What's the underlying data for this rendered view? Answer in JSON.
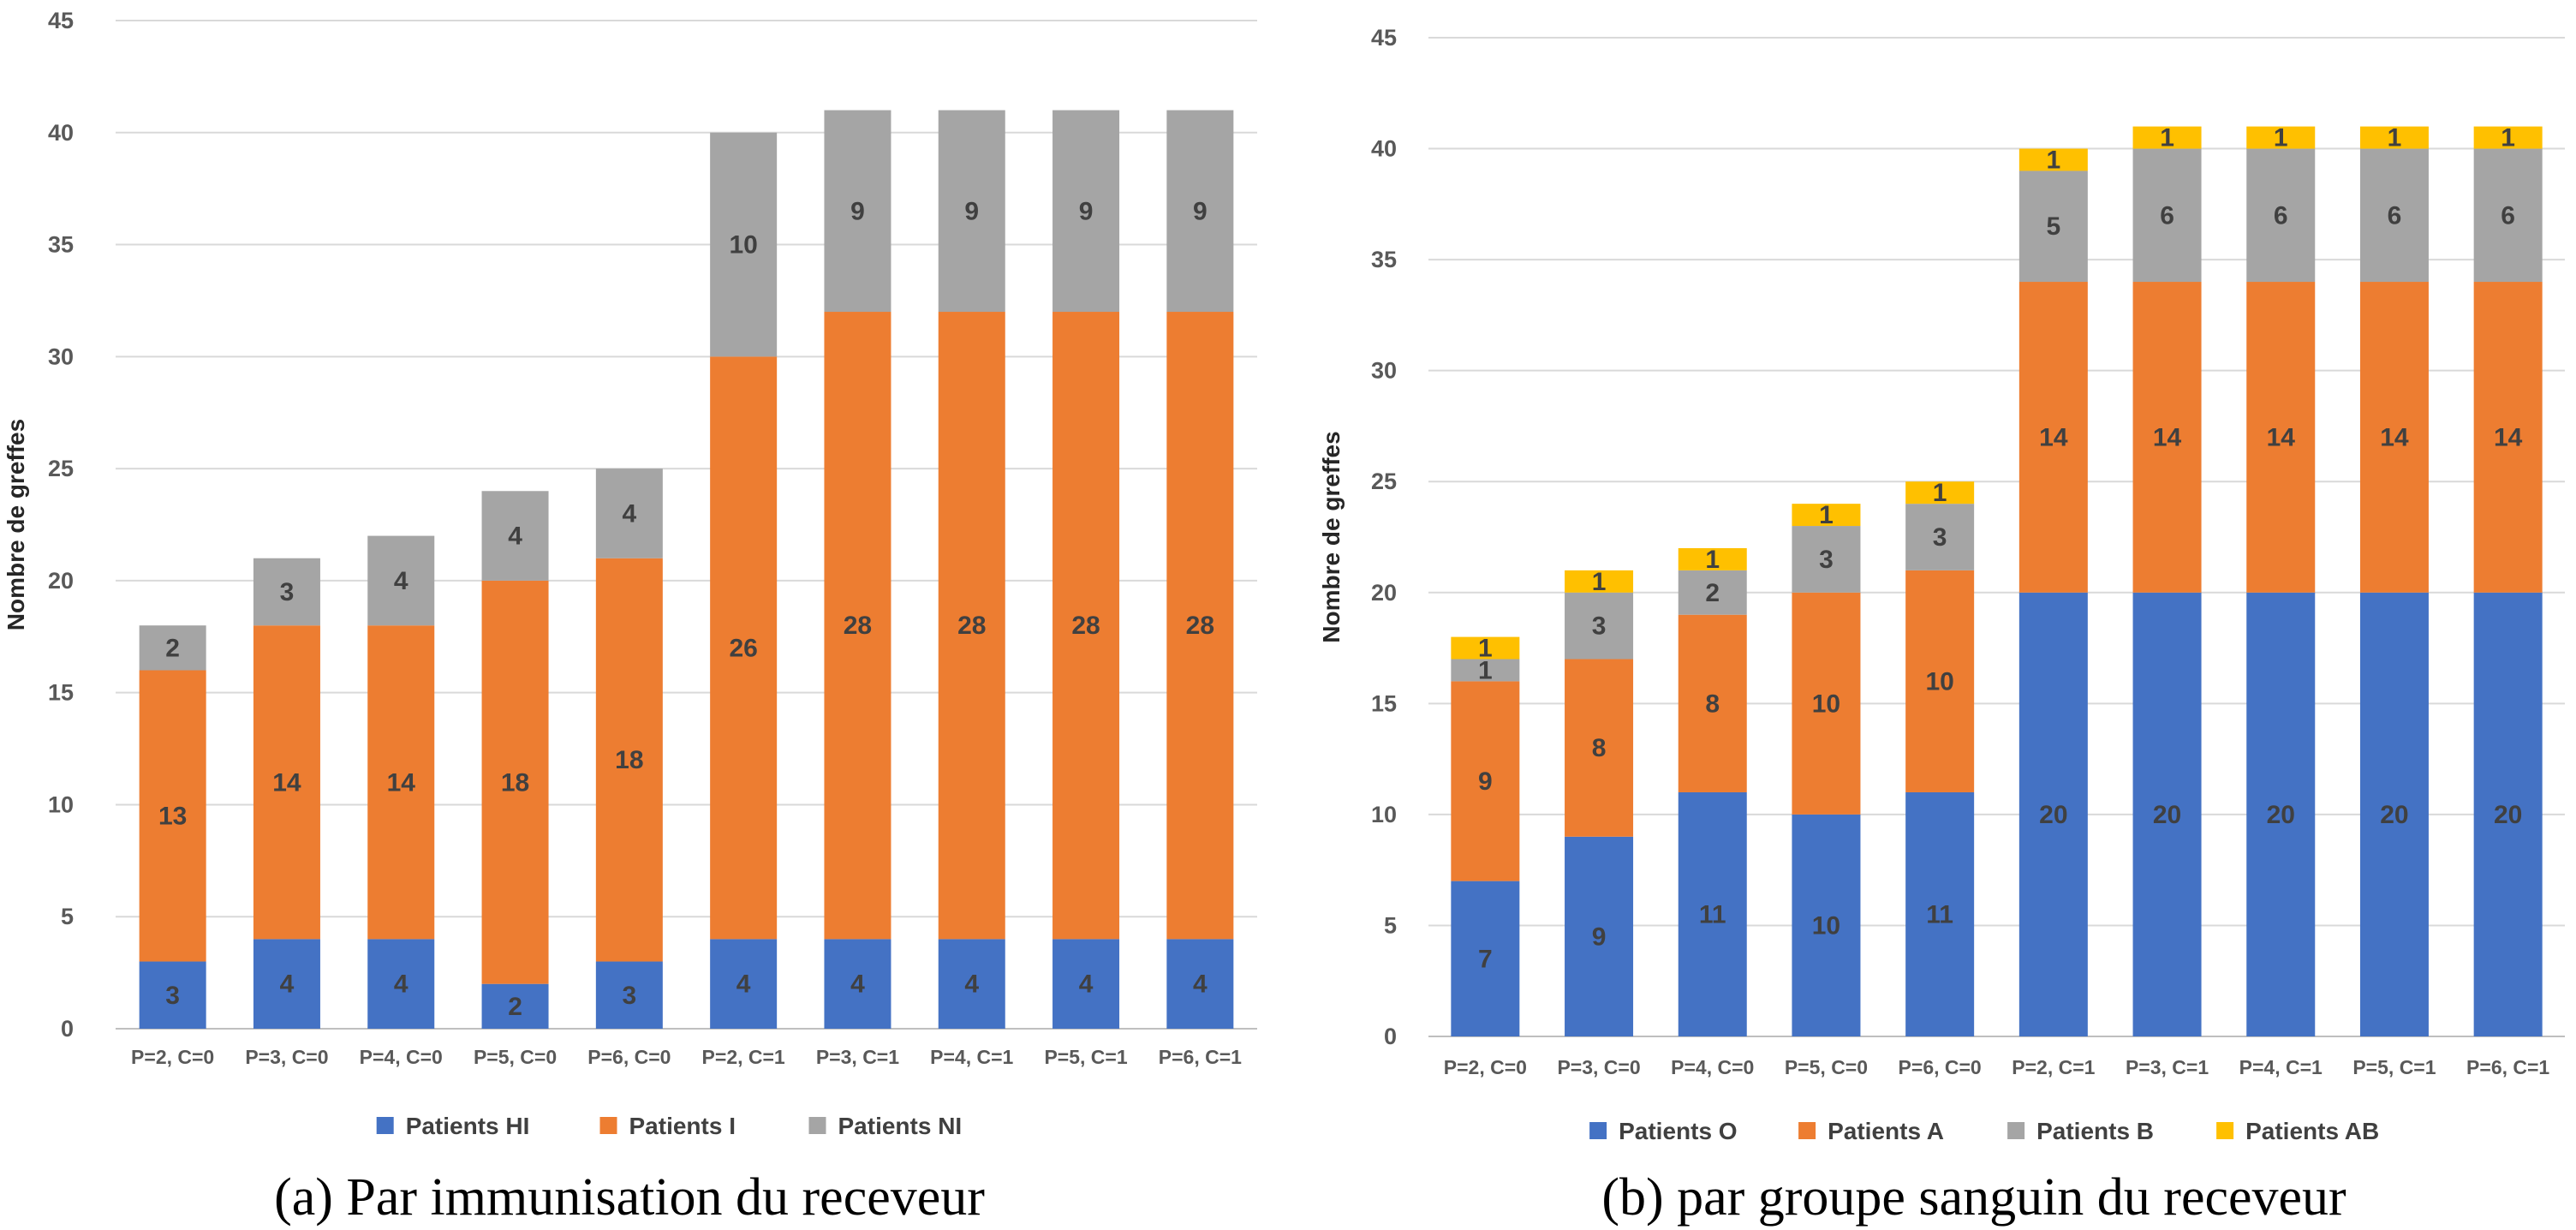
{
  "chart_data": [
    {
      "type": "bar",
      "stacked": true,
      "caption": "(a)  Par immunisation du receveur",
      "ylabel": "Nombre de greffes",
      "xlabel": "",
      "ylim": [
        0,
        45
      ],
      "yticks": [
        0,
        5,
        10,
        15,
        20,
        25,
        30,
        35,
        40,
        45
      ],
      "grid": true,
      "legend_position": "bottom",
      "categories": [
        "P=2, C=0",
        "P=3, C=0",
        "P=4, C=0",
        "P=5, C=0",
        "P=6, C=0",
        "P=2, C=1",
        "P=3, C=1",
        "P=4, C=1",
        "P=5, C=1",
        "P=6, C=1"
      ],
      "series": [
        {
          "name": "Patients HI",
          "color": "#4472C4",
          "values": [
            3,
            4,
            4,
            2,
            3,
            4,
            4,
            4,
            4,
            4
          ]
        },
        {
          "name": "Patients I",
          "color": "#ED7D31",
          "values": [
            13,
            14,
            14,
            18,
            18,
            26,
            28,
            28,
            28,
            28
          ]
        },
        {
          "name": "Patients NI",
          "color": "#A5A5A5",
          "values": [
            2,
            3,
            4,
            4,
            4,
            10,
            9,
            9,
            9,
            9
          ]
        }
      ]
    },
    {
      "type": "bar",
      "stacked": true,
      "caption": "(b) par groupe sanguin du receveur",
      "ylabel": "Nombre de greffes",
      "xlabel": "",
      "ylim": [
        0,
        45
      ],
      "yticks": [
        0,
        5,
        10,
        15,
        20,
        25,
        30,
        35,
        40,
        45
      ],
      "grid": true,
      "legend_position": "bottom",
      "categories": [
        "P=2, C=0",
        "P=3, C=0",
        "P=4, C=0",
        "P=5, C=0",
        "P=6, C=0",
        "P=2, C=1",
        "P=3, C=1",
        "P=4, C=1",
        "P=5, C=1",
        "P=6, C=1"
      ],
      "series": [
        {
          "name": "Patients O",
          "color": "#4472C4",
          "values": [
            7,
            9,
            11,
            10,
            11,
            20,
            20,
            20,
            20,
            20
          ]
        },
        {
          "name": "Patients A",
          "color": "#ED7D31",
          "values": [
            9,
            8,
            8,
            10,
            10,
            14,
            14,
            14,
            14,
            14
          ]
        },
        {
          "name": "Patients B",
          "color": "#A5A5A5",
          "values": [
            1,
            3,
            2,
            3,
            3,
            5,
            6,
            6,
            6,
            6
          ]
        },
        {
          "name": "Patients AB",
          "color": "#FFC000",
          "values": [
            1,
            1,
            1,
            1,
            1,
            1,
            1,
            1,
            1,
            1
          ]
        }
      ]
    }
  ]
}
